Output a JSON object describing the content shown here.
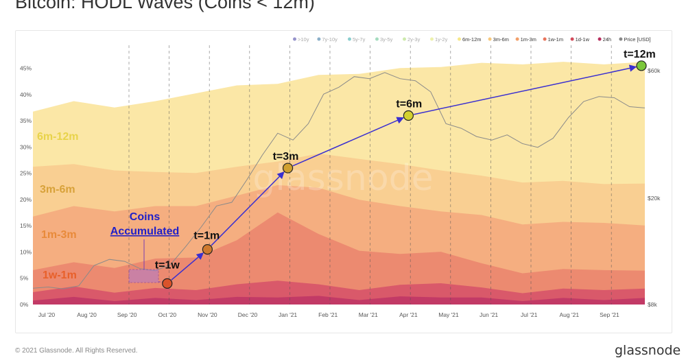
{
  "title": "Bitcoin: HODL Waves (Coins < 12m)",
  "footer": {
    "copyright": "© 2021 Glassnode. All Rights Reserved.",
    "brand": "glassnode"
  },
  "watermark": "glassnode",
  "chart_data": {
    "type": "area",
    "stacked": true,
    "x_axis": {
      "labels": [
        "Jul '20",
        "Aug '20",
        "Sep '20",
        "Oct '20",
        "Nov '20",
        "Dec '20",
        "Jan '21",
        "Feb '21",
        "Mar '21",
        "Apr '21",
        "May '21",
        "Jun '21",
        "Jul '21",
        "Aug '21",
        "Sep '21"
      ]
    },
    "y_left": {
      "ticks": [
        "0%",
        "5%",
        "10%",
        "15%",
        "20%",
        "25%",
        "30%",
        "35%",
        "40%",
        "45%"
      ],
      "range": [
        0,
        46
      ]
    },
    "y_right": {
      "ticks": [
        "$8k",
        "$20k",
        "$60k"
      ],
      "scale": "log",
      "label": "Price [USD]"
    },
    "legend": [
      {
        "name": ">10y",
        "color": "#3f3aa0",
        "active": false
      },
      {
        "name": "7y-10y",
        "color": "#2c6e9c",
        "active": false
      },
      {
        "name": "5y-7y",
        "color": "#2aa5a8",
        "active": false
      },
      {
        "name": "3y-5y",
        "color": "#5bbf8a",
        "active": false
      },
      {
        "name": "2y-3y",
        "color": "#a4d86a",
        "active": false
      },
      {
        "name": "1y-2y",
        "color": "#dfe66a",
        "active": false
      },
      {
        "name": "6m-12m",
        "color": "#f7e889",
        "active": true
      },
      {
        "name": "3m-6m",
        "color": "#f7c87c",
        "active": true
      },
      {
        "name": "1m-3m",
        "color": "#f2a06a",
        "active": true
      },
      {
        "name": "1w-1m",
        "color": "#e8745c",
        "active": true
      },
      {
        "name": "1d-1w",
        "color": "#d24a5a",
        "active": true
      },
      {
        "name": "24h",
        "color": "#b72e5e",
        "active": true
      },
      {
        "name": "Price [USD]",
        "color": "#888888",
        "active": true
      }
    ],
    "series": [
      {
        "name": "24h",
        "color": "#c23a66",
        "top": [
          1.0,
          1.2,
          0.9,
          1.0,
          1.1,
          1.2,
          1.6,
          1.4,
          1.1,
          1.3,
          1.6,
          1.1,
          0.9,
          1.0,
          1.1,
          1.0
        ]
      },
      {
        "name": "1d-1w",
        "color": "#d9596a",
        "top": [
          2.6,
          3.2,
          2.5,
          2.9,
          3.0,
          3.6,
          4.8,
          3.6,
          3.0,
          3.5,
          4.3,
          3.0,
          2.4,
          2.8,
          3.0,
          2.8
        ]
      },
      {
        "name": "1w-1m",
        "color": "#ec8a70",
        "top": [
          6.8,
          7.8,
          7.2,
          8.5,
          9.2,
          12.0,
          17.8,
          13.2,
          10.5,
          9.4,
          10.3,
          7.6,
          6.2,
          6.5,
          6.8,
          6.2
        ]
      },
      {
        "name": "1m-3m",
        "color": "#f5ae80",
        "top": [
          17.0,
          18.5,
          18.0,
          18.5,
          19.0,
          20.5,
          23.0,
          22.0,
          20.2,
          18.5,
          18.0,
          16.8,
          15.5,
          15.5,
          15.8,
          14.8
        ]
      },
      {
        "name": "3m-6m",
        "color": "#f9cf92",
        "top": [
          26.5,
          26.5,
          25.8,
          25.0,
          25.3,
          26.0,
          27.5,
          28.5,
          28.0,
          26.5,
          25.8,
          24.3,
          23.5,
          23.3,
          23.2,
          22.8
        ]
      },
      {
        "name": "6m-12m",
        "color": "#fbe7a6",
        "top": [
          37.0,
          38.5,
          37.8,
          38.5,
          40.5,
          41.5,
          42.3,
          43.5,
          44.2,
          44.8,
          45.5,
          45.8,
          46.0,
          46.0,
          46.0,
          46.0
        ]
      }
    ],
    "price": [
      9200,
      9300,
      9150,
      9400,
      11200,
      11800,
      11600,
      10900,
      10700,
      11300,
      13200,
      15600,
      18700,
      19300,
      23500,
      29000,
      35000,
      33000,
      38000,
      49000,
      52000,
      57000,
      56000,
      59000,
      56000,
      55000,
      50000,
      38000,
      36500,
      34000,
      33000,
      34500,
      32000,
      31000,
      33500,
      40000,
      46000,
      48000,
      47500,
      44000,
      43500
    ],
    "annotations": {
      "bands": [
        "6m-12m",
        "3m-6m",
        "1m-3m",
        "1w-1m"
      ],
      "accumulated_label_line1": "Coins",
      "accumulated_label_line2": "Accumulated",
      "milestones": [
        {
          "label": "t=1w",
          "x_date": "2020-10-01",
          "y": 4.0,
          "color": "#d9532b"
        },
        {
          "label": "t=1m",
          "x_date": "2020-11-01",
          "y": 10.5,
          "color": "#d07a2e"
        },
        {
          "label": "t=3m",
          "x_date": "2021-01-01",
          "y": 26.0,
          "color": "#d1a02f"
        },
        {
          "label": "t=6m",
          "x_date": "2021-04-01",
          "y": 36.0,
          "color": "#d4d12f"
        },
        {
          "label": "t=12m",
          "x_date": "2021-10-01",
          "y": 45.5,
          "color": "#7bc73b"
        }
      ]
    }
  }
}
